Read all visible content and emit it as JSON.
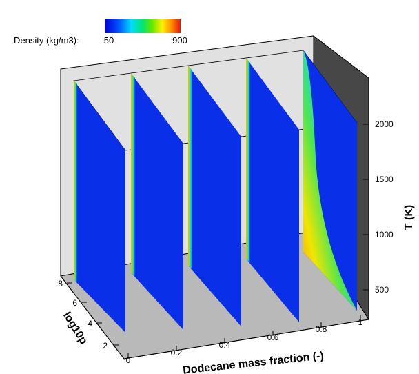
{
  "colors": {
    "back_wall": "#e1e1e1",
    "right_wall": "#474747",
    "floor": "#b9b9b9",
    "slab_main": "#0a2fe8",
    "colormap": [
      "#0000d0",
      "#0050ff",
      "#00dcff",
      "#00e66e",
      "#64e600",
      "#fff000",
      "#ff8c00",
      "#e61414"
    ]
  },
  "colorbar": {
    "label": "Density (kg/m3):",
    "min_label": "50",
    "max_label": "900"
  },
  "chart_data": {
    "type": "3d-slices",
    "variable": "Density (kg/m3)",
    "color_range": [
      50,
      900
    ],
    "x_axis": {
      "label": "Dodecane mass fraction (-)",
      "range": [
        0,
        1
      ],
      "ticks": [
        "0",
        "0.2",
        "0.4",
        "0.6",
        "0.8",
        "1"
      ]
    },
    "y_axis": {
      "label": "log10p",
      "range": [
        1,
        8.5
      ],
      "ticks": [
        "2",
        "4",
        "6",
        "8"
      ]
    },
    "z_axis": {
      "label": "T (K)",
      "range": [
        300,
        2050
      ],
      "ticks": [
        "500",
        "1000",
        "1500",
        "2000"
      ]
    },
    "slices_at_x": [
      0,
      0.25,
      0.5,
      0.75,
      1
    ],
    "high_density_region": "low T near x = 1"
  }
}
